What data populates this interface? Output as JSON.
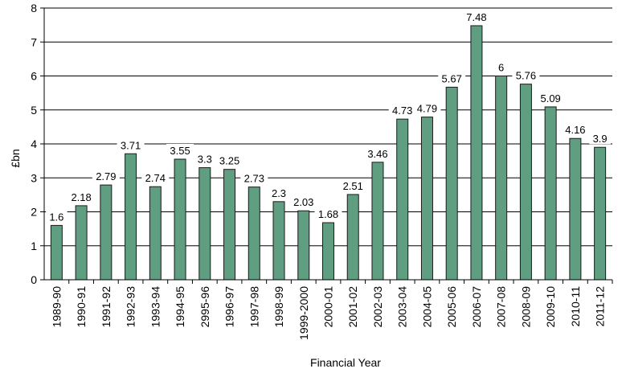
{
  "chart_data": {
    "type": "bar",
    "title": "",
    "xlabel": "Financial Year",
    "ylabel": "£bn",
    "ylim": [
      0,
      8
    ],
    "yticks": [
      "0",
      "1",
      "2",
      "3",
      "4",
      "5",
      "6",
      "7",
      "8"
    ],
    "grid": "horizontal",
    "legend": "none",
    "bar_color": "#5f9e80",
    "bar_edge_color": "#1a1a1a",
    "categories": [
      "1989-90",
      "1990-91",
      "1991-92",
      "1992-93",
      "1993-94",
      "1994-95",
      "2995-96",
      "1996-97",
      "1997-98",
      "1998-99",
      "1999-2000",
      "2000-01",
      "2001-02",
      "2002-03",
      "2003-04",
      "2004-05",
      "2005-06",
      "2006-07",
      "2007-08",
      "2008-09",
      "2009-10",
      "2010-11",
      "2011-12"
    ],
    "values": [
      1.6,
      2.18,
      2.79,
      3.71,
      2.74,
      3.55,
      3.3,
      3.25,
      2.73,
      2.3,
      2.03,
      1.68,
      2.51,
      3.46,
      4.73,
      4.79,
      5.67,
      7.48,
      6,
      5.76,
      5.09,
      4.16,
      3.9
    ],
    "value_labels": [
      "1.6",
      "2.18",
      "2.79",
      "3.71",
      "2.74",
      "3.55",
      "3.3",
      "3.25",
      "2.73",
      "2.3",
      "2.03",
      "1.68",
      "2.51",
      "3.46",
      "4.73",
      "4.79",
      "5.67",
      "7.48",
      "6",
      "5.76",
      "5.09",
      "4.16",
      "3.9"
    ]
  }
}
